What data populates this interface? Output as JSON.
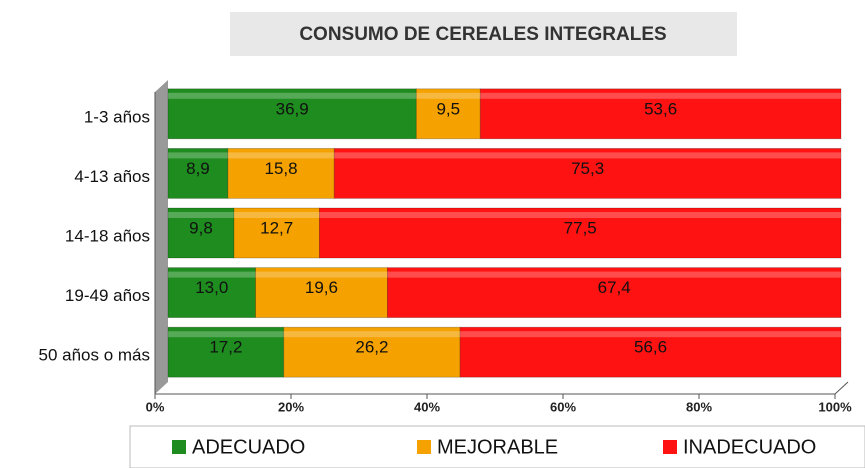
{
  "chart_data": {
    "type": "stacked_bar_horizontal",
    "title": "CONSUMO DE CEREALES INTEGRALES",
    "categories": [
      "1-3 años",
      "4-13 años",
      "14-18 años",
      "19-49 años",
      "50 años o más"
    ],
    "series": [
      {
        "name": "ADECUADO",
        "color": "#1e8c1e",
        "values": [
          36.9,
          8.9,
          9.8,
          13.0,
          17.2
        ],
        "value_labels": [
          "36,9",
          "8,9",
          "9,8",
          "13,0",
          "17,2"
        ]
      },
      {
        "name": "MEJORABLE",
        "color": "#f5a100",
        "values": [
          9.5,
          15.8,
          12.7,
          19.6,
          26.2
        ],
        "value_labels": [
          "9,5",
          "15,8",
          "12,7",
          "19,6",
          "26,2"
        ]
      },
      {
        "name": "INADECUADO",
        "color": "#ff1212",
        "values": [
          53.6,
          75.3,
          77.5,
          67.4,
          56.6
        ],
        "value_labels": [
          "53,6",
          "75,3",
          "77,5",
          "67,4",
          "56,6"
        ]
      }
    ],
    "xlim": [
      0,
      100
    ],
    "xticks": [
      {
        "value": 0,
        "label": "0%"
      },
      {
        "value": 20,
        "label": "20%"
      },
      {
        "value": 40,
        "label": "40%"
      },
      {
        "value": 60,
        "label": "60%"
      },
      {
        "value": 80,
        "label": "80%"
      },
      {
        "value": 100,
        "label": "100%"
      }
    ]
  }
}
